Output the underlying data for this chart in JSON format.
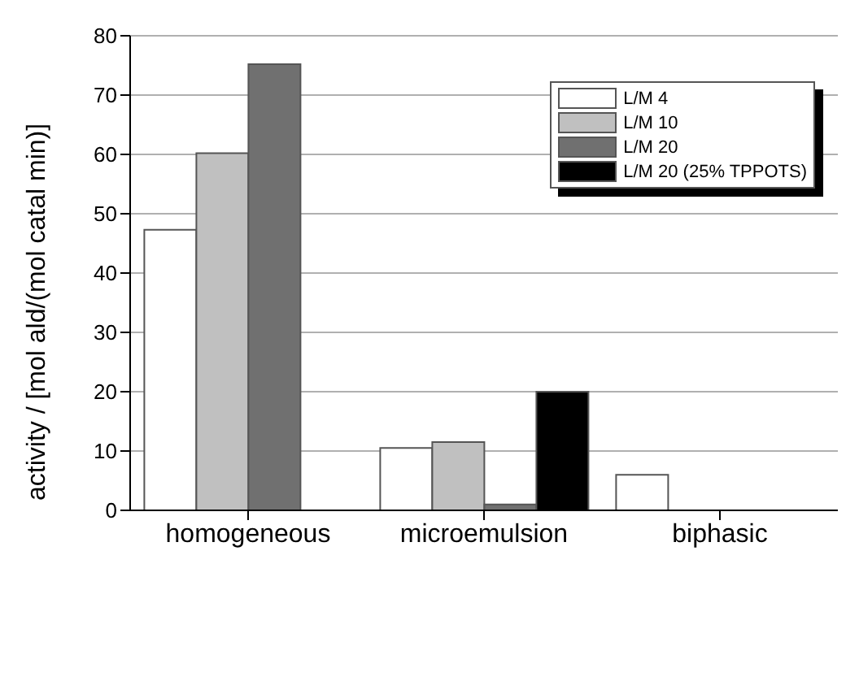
{
  "chart_data": {
    "type": "bar",
    "ylabel": "activity / [mol ald/(mol catal min)]",
    "categories": [
      "homogeneous",
      "microemulsion",
      "biphasic"
    ],
    "series": [
      {
        "name": "L/M 4",
        "color": "#ffffff",
        "values": [
          47.3,
          10.5,
          6
        ]
      },
      {
        "name": "L/M 10",
        "color": "#c0c0c0",
        "values": [
          60.2,
          11.5,
          null
        ]
      },
      {
        "name": "L/M 20",
        "color": "#707070",
        "values": [
          75.2,
          1,
          null
        ]
      },
      {
        "name": "L/M 20 (25% TPPOTS)",
        "color": "#000000",
        "values": [
          null,
          20,
          null
        ]
      }
    ],
    "ylim": [
      0,
      80
    ],
    "yticks": [
      0,
      10,
      20,
      30,
      40,
      50,
      60,
      70,
      80
    ],
    "grid": "y",
    "legend": "top right"
  }
}
